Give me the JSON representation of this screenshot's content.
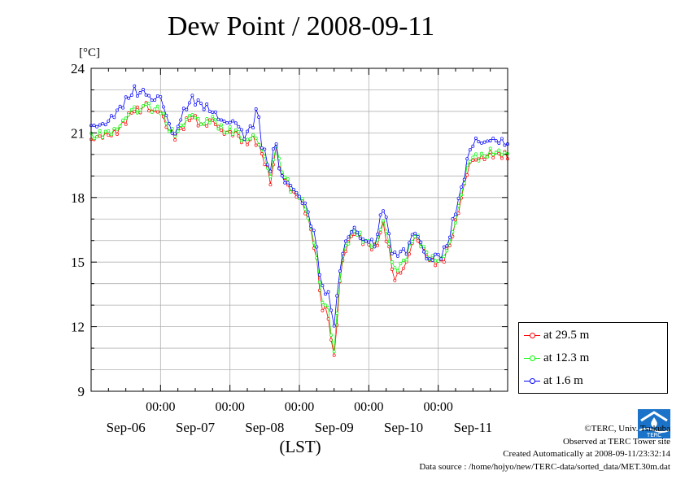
{
  "title": "Dew Point / 2008-09-11",
  "credits": {
    "copyright": "©TERC, Univ. Tsukuba",
    "observed": "Observed at TERC Tower site",
    "created": "Created Automatically at 2008-09-11/23:32:14",
    "source": "Data source : /home/hojyo/new/TERC-data/sorted_data/MET.30m.dat"
  },
  "logo_text": "TERC",
  "chart_data": {
    "type": "line",
    "title": "Dew Point / 2008-09-11",
    "ylabel": "[°C]",
    "xlabel": "(LST)",
    "ylim": [
      9,
      24
    ],
    "yticks": [
      9,
      12,
      15,
      18,
      21,
      24
    ],
    "xlim_days": [
      0,
      6.0
    ],
    "x_tick_labels": [
      "00:00",
      "00:00",
      "00:00",
      "00:00",
      "00:00"
    ],
    "x_tick_positions_days": [
      1,
      2,
      3,
      4,
      5
    ],
    "date_labels": [
      "Sep-06",
      "Sep-07",
      "Sep-08",
      "Sep-09",
      "Sep-10",
      "Sep-11"
    ],
    "grid": true,
    "legend_position": "right",
    "series": [
      {
        "name": "at 29.5 m",
        "color": "#ff0000",
        "knots": [
          [
            0,
            20.7
          ],
          [
            0.2,
            20.9
          ],
          [
            0.35,
            21.0
          ],
          [
            0.5,
            21.6
          ],
          [
            0.62,
            22.1
          ],
          [
            0.7,
            22.0
          ],
          [
            0.78,
            22.4
          ],
          [
            0.85,
            22.0
          ],
          [
            1.0,
            22.0
          ],
          [
            1.1,
            21.2
          ],
          [
            1.2,
            20.8
          ],
          [
            1.3,
            21.2
          ],
          [
            1.45,
            21.8
          ],
          [
            1.6,
            21.3
          ],
          [
            1.75,
            21.6
          ],
          [
            1.9,
            21.0
          ],
          [
            2.1,
            21.0
          ],
          [
            2.2,
            20.5
          ],
          [
            2.35,
            20.8
          ],
          [
            2.45,
            20.1
          ],
          [
            2.55,
            19.2
          ],
          [
            2.6,
            18.4
          ],
          [
            2.65,
            20.7
          ],
          [
            2.7,
            19.5
          ],
          [
            2.8,
            18.8
          ],
          [
            2.9,
            18.2
          ],
          [
            3.0,
            18.0
          ],
          [
            3.1,
            17.3
          ],
          [
            3.2,
            16.0
          ],
          [
            3.25,
            15.0
          ],
          [
            3.3,
            13.5
          ],
          [
            3.35,
            12.5
          ],
          [
            3.4,
            13.0
          ],
          [
            3.45,
            11.5
          ],
          [
            3.5,
            10.6
          ],
          [
            3.55,
            12.5
          ],
          [
            3.6,
            14.8
          ],
          [
            3.7,
            15.9
          ],
          [
            3.8,
            16.4
          ],
          [
            3.9,
            16.0
          ],
          [
            4.0,
            15.8
          ],
          [
            4.1,
            15.6
          ],
          [
            4.2,
            16.8
          ],
          [
            4.3,
            15.5
          ],
          [
            4.35,
            14.2
          ],
          [
            4.45,
            14.5
          ],
          [
            4.55,
            15.0
          ],
          [
            4.65,
            16.2
          ],
          [
            4.75,
            15.8
          ],
          [
            4.85,
            15.2
          ],
          [
            4.95,
            15.0
          ],
          [
            5.05,
            15.0
          ],
          [
            5.15,
            15.6
          ],
          [
            5.25,
            16.8
          ],
          [
            5.35,
            18.2
          ],
          [
            5.45,
            19.6
          ],
          [
            5.55,
            19.8
          ],
          [
            5.65,
            19.8
          ],
          [
            5.75,
            20.0
          ],
          [
            5.9,
            20.0
          ],
          [
            6.0,
            19.9
          ]
        ]
      },
      {
        "name": "at 12.3 m",
        "color": "#00ff00",
        "knots": [
          [
            0,
            20.8
          ],
          [
            0.2,
            21.0
          ],
          [
            0.35,
            21.1
          ],
          [
            0.5,
            21.7
          ],
          [
            0.62,
            22.2
          ],
          [
            0.7,
            21.9
          ],
          [
            0.78,
            22.5
          ],
          [
            0.85,
            22.1
          ],
          [
            1.0,
            22.1
          ],
          [
            1.1,
            21.3
          ],
          [
            1.2,
            20.9
          ],
          [
            1.3,
            21.3
          ],
          [
            1.45,
            21.9
          ],
          [
            1.6,
            21.4
          ],
          [
            1.75,
            21.7
          ],
          [
            1.9,
            21.1
          ],
          [
            2.1,
            21.1
          ],
          [
            2.2,
            20.6
          ],
          [
            2.35,
            20.9
          ],
          [
            2.45,
            20.3
          ],
          [
            2.55,
            19.4
          ],
          [
            2.6,
            18.6
          ],
          [
            2.65,
            20.9
          ],
          [
            2.7,
            19.7
          ],
          [
            2.8,
            18.9
          ],
          [
            2.9,
            18.3
          ],
          [
            3.0,
            18.1
          ],
          [
            3.1,
            17.4
          ],
          [
            3.2,
            16.1
          ],
          [
            3.25,
            15.2
          ],
          [
            3.3,
            13.8
          ],
          [
            3.35,
            12.8
          ],
          [
            3.4,
            13.3
          ],
          [
            3.45,
            11.8
          ],
          [
            3.5,
            10.9
          ],
          [
            3.55,
            12.8
          ],
          [
            3.6,
            15.0
          ],
          [
            3.7,
            16.0
          ],
          [
            3.8,
            16.5
          ],
          [
            3.9,
            16.1
          ],
          [
            4.0,
            15.9
          ],
          [
            4.1,
            15.7
          ],
          [
            4.2,
            17.0
          ],
          [
            4.3,
            15.8
          ],
          [
            4.35,
            14.6
          ],
          [
            4.45,
            14.8
          ],
          [
            4.55,
            15.3
          ],
          [
            4.65,
            16.3
          ],
          [
            4.75,
            15.9
          ],
          [
            4.85,
            15.3
          ],
          [
            4.95,
            15.1
          ],
          [
            5.05,
            15.1
          ],
          [
            5.15,
            15.7
          ],
          [
            5.25,
            16.9
          ],
          [
            5.35,
            18.4
          ],
          [
            5.45,
            19.8
          ],
          [
            5.55,
            19.9
          ],
          [
            5.65,
            19.9
          ],
          [
            5.75,
            20.1
          ],
          [
            5.9,
            20.1
          ],
          [
            6.0,
            20.0
          ]
        ]
      },
      {
        "name": "at 1.6 m",
        "color": "#0000ff",
        "knots": [
          [
            0,
            21.3
          ],
          [
            0.2,
            21.4
          ],
          [
            0.35,
            21.9
          ],
          [
            0.5,
            22.5
          ],
          [
            0.62,
            23.0
          ],
          [
            0.7,
            22.8
          ],
          [
            0.78,
            23.0
          ],
          [
            0.85,
            22.5
          ],
          [
            1.0,
            22.7
          ],
          [
            1.1,
            21.6
          ],
          [
            1.2,
            20.8
          ],
          [
            1.3,
            21.8
          ],
          [
            1.45,
            22.6
          ],
          [
            1.6,
            22.3
          ],
          [
            1.75,
            22.0
          ],
          [
            1.9,
            21.5
          ],
          [
            2.1,
            21.5
          ],
          [
            2.2,
            20.8
          ],
          [
            2.35,
            21.5
          ],
          [
            2.4,
            22.4
          ],
          [
            2.45,
            20.5
          ],
          [
            2.55,
            19.6
          ],
          [
            2.6,
            19.0
          ],
          [
            2.65,
            21.3
          ],
          [
            2.7,
            19.3
          ],
          [
            2.8,
            18.7
          ],
          [
            2.9,
            18.5
          ],
          [
            3.0,
            18.0
          ],
          [
            3.1,
            17.6
          ],
          [
            3.2,
            16.4
          ],
          [
            3.25,
            15.8
          ],
          [
            3.3,
            14.2
          ],
          [
            3.35,
            13.5
          ],
          [
            3.4,
            13.9
          ],
          [
            3.45,
            12.8
          ],
          [
            3.5,
            12.2
          ],
          [
            3.55,
            13.5
          ],
          [
            3.6,
            15.2
          ],
          [
            3.7,
            16.2
          ],
          [
            3.8,
            16.6
          ],
          [
            3.9,
            16.0
          ],
          [
            4.0,
            16.0
          ],
          [
            4.1,
            15.8
          ],
          [
            4.2,
            17.7
          ],
          [
            4.3,
            16.2
          ],
          [
            4.35,
            15.2
          ],
          [
            4.45,
            15.5
          ],
          [
            4.55,
            15.5
          ],
          [
            4.65,
            16.5
          ],
          [
            4.75,
            15.9
          ],
          [
            4.85,
            15.0
          ],
          [
            4.95,
            15.3
          ],
          [
            5.05,
            15.3
          ],
          [
            5.15,
            16.0
          ],
          [
            5.25,
            17.4
          ],
          [
            5.35,
            18.6
          ],
          [
            5.45,
            20.2
          ],
          [
            5.55,
            20.7
          ],
          [
            5.65,
            20.5
          ],
          [
            5.75,
            20.7
          ],
          [
            5.9,
            20.6
          ],
          [
            6.0,
            20.5
          ]
        ]
      }
    ]
  }
}
